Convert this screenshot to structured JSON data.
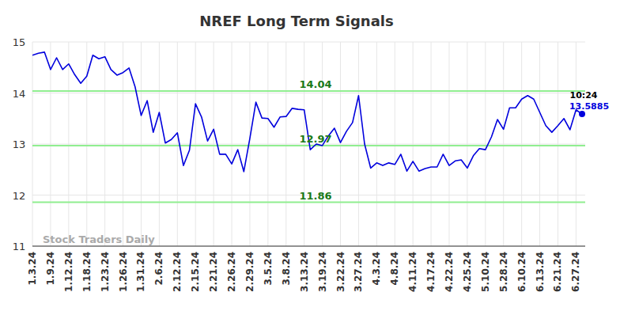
{
  "chart_data": {
    "type": "line",
    "title": "NREF Long Term Signals",
    "watermark": "Stock Traders Daily",
    "last_time": "10:24",
    "color": "#0000dd",
    "grid": true,
    "ylim": [
      11,
      15
    ],
    "yticks": [
      11,
      12,
      13,
      14,
      15
    ],
    "levels": [
      {
        "value": 14.04,
        "label": "14.04"
      },
      {
        "value": 12.97,
        "label": "12.97"
      },
      {
        "value": 11.86,
        "label": "11.86"
      }
    ],
    "categories": [
      "1.3.24",
      null,
      null,
      "1.9.24",
      null,
      null,
      "1.12.24",
      null,
      null,
      "1.18.24",
      null,
      null,
      "1.23.24",
      null,
      null,
      "1.26.24",
      null,
      null,
      "1.31.24",
      null,
      null,
      "2.6.24",
      null,
      null,
      "2.12.24",
      null,
      null,
      "2.15.24",
      null,
      null,
      "2.21.24",
      null,
      null,
      "2.26.24",
      null,
      null,
      "2.29.24",
      null,
      null,
      "3.5.24",
      null,
      null,
      "3.8.24",
      null,
      null,
      "3.13.24",
      null,
      null,
      "3.19.24",
      null,
      null,
      "3.22.24",
      null,
      null,
      "3.27.24",
      null,
      null,
      "4.3.24",
      null,
      null,
      "4.8.24",
      null,
      null,
      "4.11.24",
      null,
      null,
      "4.17.24",
      null,
      null,
      "4.22.24",
      null,
      null,
      "4.25.24",
      null,
      null,
      "5.10.24",
      null,
      null,
      "5.28.24",
      null,
      null,
      "6.10.24",
      null,
      null,
      "6.13.24",
      null,
      null,
      "6.21.24",
      null,
      null,
      "6.27.24",
      null
    ],
    "values": [
      14.74,
      14.78,
      14.8,
      14.46,
      14.69,
      14.46,
      14.57,
      14.36,
      14.19,
      14.33,
      14.74,
      14.67,
      14.71,
      14.46,
      14.35,
      14.4,
      14.49,
      14.12,
      13.56,
      13.85,
      13.23,
      13.62,
      13.02,
      13.09,
      13.22,
      12.58,
      12.88,
      13.79,
      13.53,
      13.06,
      13.29,
      12.8,
      12.8,
      12.61,
      12.89,
      12.46,
      13.11,
      13.82,
      13.51,
      13.5,
      13.33,
      13.53,
      13.54,
      13.7,
      13.68,
      13.67,
      12.89,
      13.0,
      12.97,
      13.16,
      13.31,
      13.03,
      13.25,
      13.42,
      13.95,
      13.0,
      12.53,
      12.63,
      12.58,
      12.63,
      12.6,
      12.8,
      12.47,
      12.66,
      12.47,
      12.52,
      12.55,
      12.55,
      12.8,
      12.58,
      12.67,
      12.69,
      12.53,
      12.77,
      12.91,
      12.89,
      13.14,
      13.48,
      13.29,
      13.71,
      13.71,
      13.88,
      13.95,
      13.88,
      13.62,
      13.36,
      13.23,
      13.36,
      13.5,
      13.28,
      13.67,
      13.5885
    ]
  }
}
